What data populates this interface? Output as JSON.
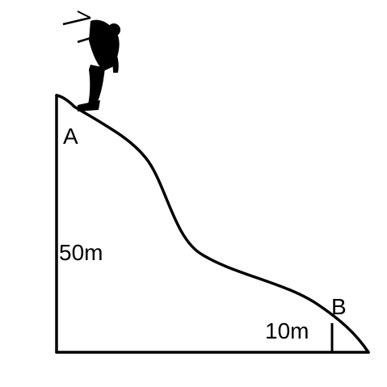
{
  "diagram": {
    "labels": {
      "point_a": "A",
      "point_b": "B",
      "height_a": "50m",
      "height_b": "10m"
    },
    "colors": {
      "ink": "#000000",
      "background": "#ffffff"
    },
    "icons": {
      "figure": "skier-silhouette-icon"
    }
  }
}
